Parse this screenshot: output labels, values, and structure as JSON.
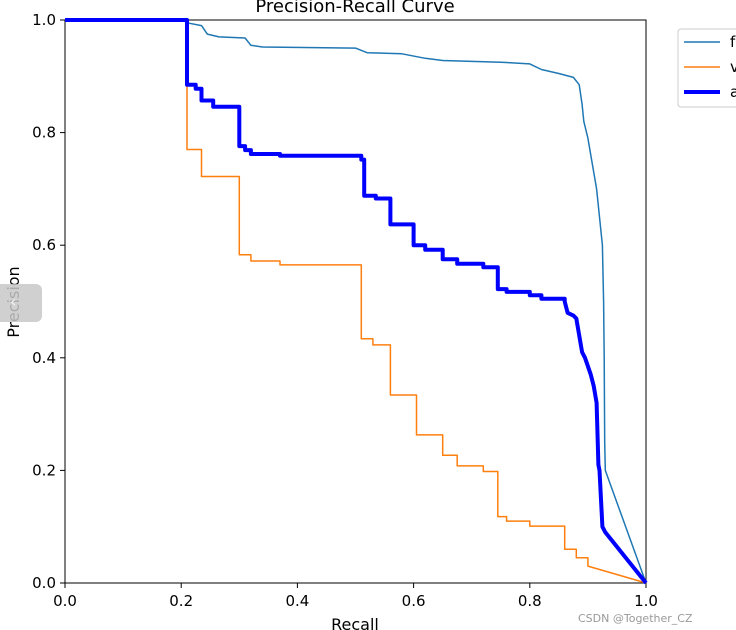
{
  "chart_data": {
    "type": "line",
    "title": "Precision-Recall Curve",
    "xlabel": "Recall",
    "ylabel": "Precision",
    "xlim": [
      0.0,
      1.0
    ],
    "ylim": [
      0.0,
      1.0
    ],
    "xticks": [
      "0.0",
      "0.2",
      "0.4",
      "0.6",
      "0.8",
      "1.0"
    ],
    "yticks": [
      "0.0",
      "0.2",
      "0.4",
      "0.6",
      "0.8",
      "1.0"
    ],
    "grid": false,
    "legend_position": "outside-top-right",
    "legend_labels_visible": [
      "f",
      "v",
      "a"
    ],
    "series": [
      {
        "name": "f",
        "color": "#1f77b4",
        "line_width": 1.5,
        "points": [
          [
            0.0,
            1.0
          ],
          [
            0.21,
            1.0
          ],
          [
            0.21,
            0.995
          ],
          [
            0.235,
            0.99
          ],
          [
            0.245,
            0.975
          ],
          [
            0.265,
            0.97
          ],
          [
            0.31,
            0.968
          ],
          [
            0.32,
            0.955
          ],
          [
            0.34,
            0.952
          ],
          [
            0.5,
            0.95
          ],
          [
            0.52,
            0.942
          ],
          [
            0.58,
            0.94
          ],
          [
            0.62,
            0.932
          ],
          [
            0.65,
            0.928
          ],
          [
            0.75,
            0.925
          ],
          [
            0.8,
            0.922
          ],
          [
            0.82,
            0.912
          ],
          [
            0.85,
            0.905
          ],
          [
            0.875,
            0.898
          ],
          [
            0.885,
            0.885
          ],
          [
            0.89,
            0.85
          ],
          [
            0.893,
            0.82
          ],
          [
            0.9,
            0.79
          ],
          [
            0.905,
            0.76
          ],
          [
            0.91,
            0.73
          ],
          [
            0.915,
            0.7
          ],
          [
            0.92,
            0.65
          ],
          [
            0.925,
            0.6
          ],
          [
            0.927,
            0.5
          ],
          [
            0.928,
            0.4
          ],
          [
            0.929,
            0.25
          ],
          [
            0.93,
            0.2
          ],
          [
            1.0,
            0.0
          ]
        ]
      },
      {
        "name": "v",
        "color": "#ff7f0e",
        "line_width": 1.5,
        "points": [
          [
            0.0,
            1.0
          ],
          [
            0.21,
            1.0
          ],
          [
            0.21,
            0.77
          ],
          [
            0.235,
            0.77
          ],
          [
            0.235,
            0.722
          ],
          [
            0.3,
            0.722
          ],
          [
            0.3,
            0.583
          ],
          [
            0.32,
            0.583
          ],
          [
            0.32,
            0.572
          ],
          [
            0.37,
            0.572
          ],
          [
            0.37,
            0.565
          ],
          [
            0.51,
            0.565
          ],
          [
            0.51,
            0.434
          ],
          [
            0.53,
            0.434
          ],
          [
            0.53,
            0.423
          ],
          [
            0.56,
            0.423
          ],
          [
            0.56,
            0.334
          ],
          [
            0.605,
            0.334
          ],
          [
            0.605,
            0.263
          ],
          [
            0.65,
            0.263
          ],
          [
            0.65,
            0.227
          ],
          [
            0.675,
            0.227
          ],
          [
            0.675,
            0.208
          ],
          [
            0.72,
            0.208
          ],
          [
            0.72,
            0.198
          ],
          [
            0.745,
            0.198
          ],
          [
            0.745,
            0.118
          ],
          [
            0.76,
            0.118
          ],
          [
            0.76,
            0.11
          ],
          [
            0.8,
            0.11
          ],
          [
            0.8,
            0.101
          ],
          [
            0.86,
            0.101
          ],
          [
            0.86,
            0.06
          ],
          [
            0.88,
            0.06
          ],
          [
            0.88,
            0.045
          ],
          [
            0.9,
            0.045
          ],
          [
            0.9,
            0.03
          ],
          [
            1.0,
            0.0
          ]
        ]
      },
      {
        "name": "a",
        "color": "#0000ff",
        "line_width": 4,
        "points": [
          [
            0.0,
            1.0
          ],
          [
            0.21,
            1.0
          ],
          [
            0.21,
            0.885
          ],
          [
            0.225,
            0.885
          ],
          [
            0.225,
            0.878
          ],
          [
            0.235,
            0.878
          ],
          [
            0.235,
            0.857
          ],
          [
            0.255,
            0.857
          ],
          [
            0.255,
            0.846
          ],
          [
            0.3,
            0.846
          ],
          [
            0.3,
            0.776
          ],
          [
            0.31,
            0.776
          ],
          [
            0.31,
            0.769
          ],
          [
            0.32,
            0.769
          ],
          [
            0.32,
            0.762
          ],
          [
            0.37,
            0.762
          ],
          [
            0.37,
            0.759
          ],
          [
            0.51,
            0.759
          ],
          [
            0.51,
            0.752
          ],
          [
            0.515,
            0.752
          ],
          [
            0.515,
            0.688
          ],
          [
            0.535,
            0.688
          ],
          [
            0.535,
            0.683
          ],
          [
            0.56,
            0.683
          ],
          [
            0.56,
            0.637
          ],
          [
            0.6,
            0.637
          ],
          [
            0.6,
            0.6
          ],
          [
            0.62,
            0.6
          ],
          [
            0.62,
            0.592
          ],
          [
            0.65,
            0.592
          ],
          [
            0.65,
            0.575
          ],
          [
            0.675,
            0.575
          ],
          [
            0.675,
            0.567
          ],
          [
            0.72,
            0.567
          ],
          [
            0.72,
            0.561
          ],
          [
            0.745,
            0.561
          ],
          [
            0.745,
            0.522
          ],
          [
            0.76,
            0.522
          ],
          [
            0.76,
            0.517
          ],
          [
            0.8,
            0.517
          ],
          [
            0.8,
            0.511
          ],
          [
            0.82,
            0.511
          ],
          [
            0.82,
            0.505
          ],
          [
            0.86,
            0.505
          ],
          [
            0.86,
            0.5
          ],
          [
            0.865,
            0.48
          ],
          [
            0.875,
            0.475
          ],
          [
            0.88,
            0.47
          ],
          [
            0.885,
            0.44
          ],
          [
            0.89,
            0.41
          ],
          [
            0.895,
            0.4
          ],
          [
            0.905,
            0.37
          ],
          [
            0.91,
            0.35
          ],
          [
            0.915,
            0.32
          ],
          [
            0.918,
            0.21
          ],
          [
            0.92,
            0.2
          ],
          [
            0.925,
            0.1
          ],
          [
            0.93,
            0.09
          ],
          [
            1.0,
            0.0
          ]
        ]
      }
    ]
  },
  "watermark": "CSDN @Together_CZ"
}
